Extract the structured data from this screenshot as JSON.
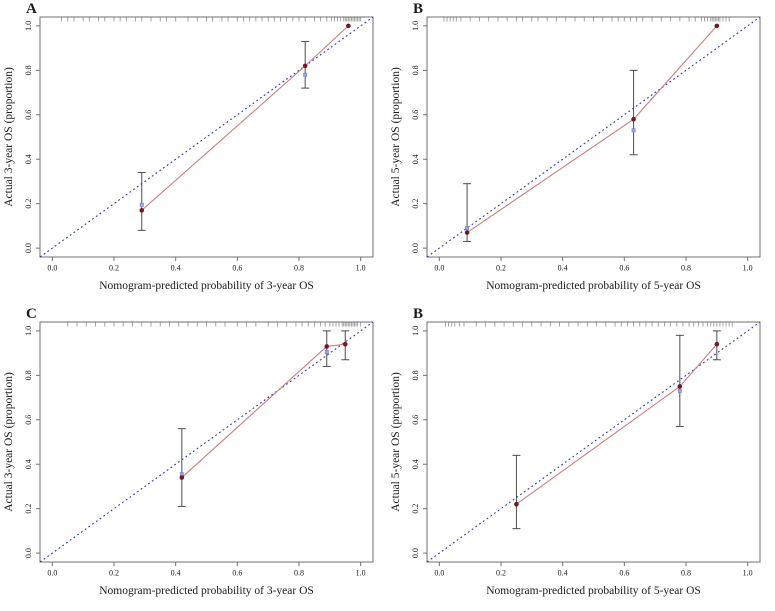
{
  "figure": {
    "background": "#ffffff",
    "colors": {
      "ideal_line": "#2e38b5",
      "calibration_line": "#c98080",
      "point": "#701926",
      "bias_marker_fill": "#a0abe0",
      "bias_marker_stroke": "#7280cd",
      "error_bar": "#4d4d4d",
      "box_border": "#707070",
      "rug": "#909090",
      "text": "#1a1a1a"
    }
  },
  "chart_data": [
    {
      "type": "line",
      "panel_label": "A",
      "title": "",
      "xlabel": "Nomogram-predicted probability of 3-year OS",
      "ylabel": "Actual 3-year OS (proportion)",
      "xlim": [
        0,
        1
      ],
      "ylim": [
        0,
        1
      ],
      "xticks": [
        0.0,
        0.2,
        0.4,
        0.6,
        0.8,
        1.0
      ],
      "yticks": [
        0.0,
        0.2,
        0.4,
        0.6,
        0.8,
        1.0
      ],
      "tick_labels": [
        "0.0",
        "0.2",
        "0.4",
        "0.6",
        "0.8",
        "1.0"
      ],
      "grid": false,
      "legend": "none",
      "ideal_line": {
        "style": "dotted",
        "slope": 1,
        "intercept": 0
      },
      "points": [
        [
          0.29,
          0.17
        ],
        [
          0.82,
          0.82
        ],
        [
          0.96,
          1.0
        ]
      ],
      "error_bars": [
        [
          0.29,
          0.08,
          0.34
        ],
        [
          0.82,
          0.72,
          0.93
        ]
      ],
      "bias_corrected_markers": [
        [
          0.29,
          0.195
        ],
        [
          0.82,
          0.78
        ]
      ],
      "rug_x": [
        0.03,
        0.05,
        0.07,
        0.1,
        0.12,
        0.15,
        0.17,
        0.2,
        0.22,
        0.24,
        0.27,
        0.29,
        0.32,
        0.35,
        0.37,
        0.4,
        0.44,
        0.47,
        0.5,
        0.52,
        0.55,
        0.57,
        0.6,
        0.62,
        0.64,
        0.66,
        0.68,
        0.7,
        0.72,
        0.74,
        0.76,
        0.78,
        0.8,
        0.82,
        0.85,
        0.87,
        0.89,
        0.905,
        0.915,
        0.925,
        0.935,
        0.945,
        0.95,
        0.955,
        0.96,
        0.965,
        0.97,
        0.975,
        0.98,
        0.985,
        0.99,
        0.995,
        1.0
      ]
    },
    {
      "type": "line",
      "panel_label": "B",
      "title": "",
      "xlabel": "Nomogram-predicted probability of 5-year OS",
      "ylabel": "Actual 5-year OS (proportion)",
      "xlim": [
        0,
        1
      ],
      "ylim": [
        0,
        1
      ],
      "xticks": [
        0.0,
        0.2,
        0.4,
        0.6,
        0.8,
        1.0
      ],
      "yticks": [
        0.0,
        0.2,
        0.4,
        0.6,
        0.8,
        1.0
      ],
      "tick_labels": [
        "0.0",
        "0.2",
        "0.4",
        "0.6",
        "0.8",
        "1.0"
      ],
      "grid": false,
      "legend": "none",
      "ideal_line": {
        "style": "dotted",
        "slope": 1,
        "intercept": 0
      },
      "points": [
        [
          0.09,
          0.07
        ],
        [
          0.63,
          0.58
        ],
        [
          0.9,
          1.0
        ]
      ],
      "error_bars": [
        [
          0.09,
          0.03,
          0.29
        ],
        [
          0.63,
          0.42,
          0.8
        ]
      ],
      "bias_corrected_markers": [
        [
          0.09,
          0.09
        ],
        [
          0.63,
          0.53
        ]
      ],
      "rug_x": [
        0.015,
        0.025,
        0.035,
        0.045,
        0.055,
        0.07,
        0.1,
        0.13,
        0.16,
        0.19,
        0.22,
        0.25,
        0.27,
        0.3,
        0.32,
        0.35,
        0.38,
        0.41,
        0.44,
        0.47,
        0.5,
        0.53,
        0.56,
        0.58,
        0.6,
        0.62,
        0.64,
        0.66,
        0.69,
        0.72,
        0.75,
        0.78,
        0.81,
        0.83,
        0.85,
        0.86,
        0.87,
        0.88,
        0.885,
        0.89,
        0.895,
        0.9,
        0.905,
        0.91,
        0.92,
        0.93,
        0.94
      ]
    },
    {
      "type": "line",
      "panel_label": "C",
      "title": "",
      "xlabel": "Nomogram-predicted probability of 3-year OS",
      "ylabel": "Actual 3-year OS (proportion)",
      "xlim": [
        0,
        1
      ],
      "ylim": [
        0,
        1
      ],
      "xticks": [
        0.0,
        0.2,
        0.4,
        0.6,
        0.8,
        1.0
      ],
      "yticks": [
        0.0,
        0.2,
        0.4,
        0.6,
        0.8,
        1.0
      ],
      "tick_labels": [
        "0.0",
        "0.2",
        "0.4",
        "0.6",
        "0.8",
        "1.0"
      ],
      "grid": false,
      "legend": "none",
      "ideal_line": {
        "style": "dotted",
        "slope": 1,
        "intercept": 0
      },
      "points": [
        [
          0.42,
          0.34
        ],
        [
          0.89,
          0.93
        ],
        [
          0.95,
          0.94
        ]
      ],
      "error_bars": [
        [
          0.42,
          0.21,
          0.56
        ],
        [
          0.89,
          0.84,
          1.0
        ],
        [
          0.95,
          0.87,
          1.0
        ]
      ],
      "bias_corrected_markers": [
        [
          0.42,
          0.355
        ],
        [
          0.89,
          0.905
        ]
      ],
      "rug_x": [
        0.05,
        0.08,
        0.11,
        0.14,
        0.17,
        0.2,
        0.23,
        0.26,
        0.29,
        0.32,
        0.35,
        0.38,
        0.41,
        0.44,
        0.47,
        0.5,
        0.53,
        0.56,
        0.6,
        0.63,
        0.66,
        0.7,
        0.73,
        0.76,
        0.79,
        0.81,
        0.83,
        0.85,
        0.87,
        0.885,
        0.9,
        0.91,
        0.92,
        0.93,
        0.94,
        0.945,
        0.95,
        0.955,
        0.96,
        0.965,
        0.97,
        0.975,
        0.98,
        0.985,
        0.99,
        1.0
      ]
    },
    {
      "type": "line",
      "panel_label": "B",
      "title": "",
      "xlabel": "Nomogram-predicted probability of 5-year OS",
      "ylabel": "Actual 5-year OS (proportion)",
      "xlim": [
        0,
        1
      ],
      "ylim": [
        0,
        1
      ],
      "xticks": [
        0.0,
        0.2,
        0.4,
        0.6,
        0.8,
        1.0
      ],
      "yticks": [
        0.0,
        0.2,
        0.4,
        0.6,
        0.8,
        1.0
      ],
      "tick_labels": [
        "0.0",
        "0.2",
        "0.4",
        "0.6",
        "0.8",
        "1.0"
      ],
      "grid": false,
      "legend": "none",
      "ideal_line": {
        "style": "dotted",
        "slope": 1,
        "intercept": 0
      },
      "points": [
        [
          0.25,
          0.22
        ],
        [
          0.78,
          0.75
        ],
        [
          0.9,
          0.94
        ]
      ],
      "error_bars": [
        [
          0.25,
          0.11,
          0.44
        ],
        [
          0.78,
          0.57,
          0.98
        ],
        [
          0.9,
          0.87,
          1.0
        ]
      ],
      "bias_corrected_markers": [
        [
          0.78,
          0.73
        ]
      ],
      "rug_x": [
        0.02,
        0.03,
        0.04,
        0.05,
        0.065,
        0.08,
        0.12,
        0.15,
        0.18,
        0.21,
        0.24,
        0.27,
        0.3,
        0.33,
        0.36,
        0.39,
        0.42,
        0.45,
        0.48,
        0.51,
        0.54,
        0.57,
        0.59,
        0.61,
        0.63,
        0.65,
        0.67,
        0.69,
        0.71,
        0.73,
        0.75,
        0.77,
        0.79,
        0.81,
        0.825,
        0.84,
        0.855,
        0.87,
        0.88,
        0.89,
        0.9,
        0.91,
        0.92,
        0.93,
        0.94,
        0.95
      ]
    }
  ]
}
